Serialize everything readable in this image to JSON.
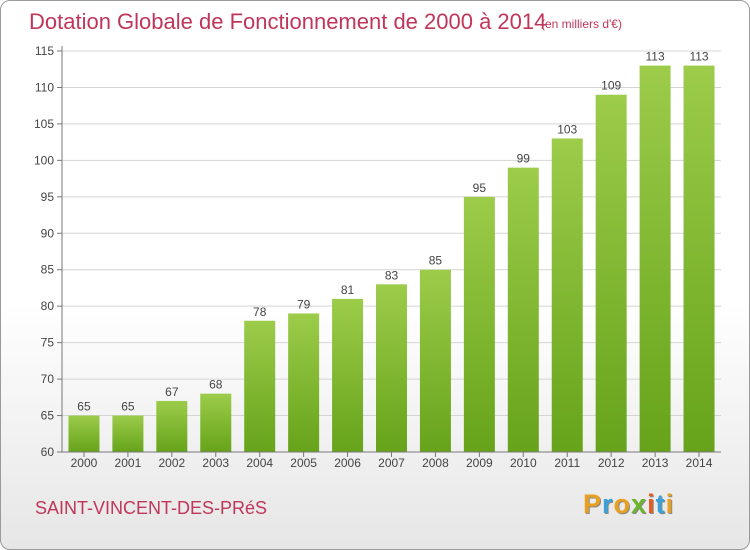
{
  "header": {
    "title": "Dotation Globale de Fonctionnement de 2000 à 2014",
    "subtitle": "(en milliers d'€)"
  },
  "footer": {
    "commune": "SAINT-VINCENT-DES-PRéS",
    "logo_letters": [
      "P",
      "r",
      "o",
      "x",
      "i",
      "t",
      "i"
    ],
    "logo_colors": [
      "#e8a020",
      "#3aa0d8",
      "#e8a020",
      "#6bb52a",
      "#e85a20",
      "#3aa0d8",
      "#e8a020"
    ]
  },
  "chart_data": {
    "type": "bar",
    "title": "Dotation Globale de Fonctionnement de 2000 à 2014",
    "subtitle": "(en milliers d'€)",
    "categories": [
      "2000",
      "2001",
      "2002",
      "2003",
      "2004",
      "2005",
      "2006",
      "2007",
      "2008",
      "2009",
      "2010",
      "2011",
      "2012",
      "2013",
      "2014"
    ],
    "values": [
      65,
      65,
      67,
      68,
      78,
      79,
      81,
      83,
      85,
      95,
      99,
      103,
      109,
      113,
      113
    ],
    "ylim": [
      60,
      115
    ],
    "yticks": [
      60,
      65,
      70,
      75,
      80,
      85,
      90,
      95,
      100,
      105,
      110,
      115
    ],
    "grid": true,
    "bar_color_top": "#9ccc4a",
    "bar_color_bottom": "#66a31a"
  }
}
